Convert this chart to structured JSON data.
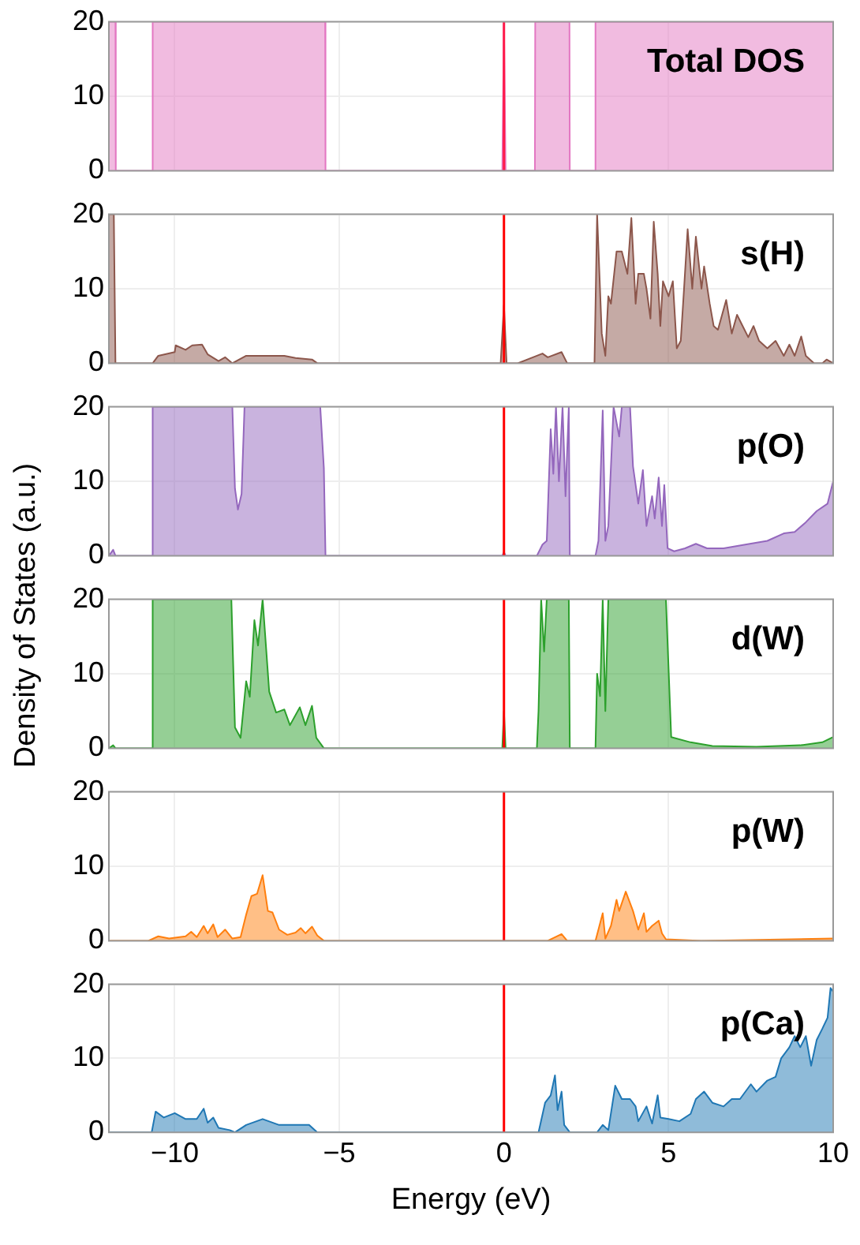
{
  "chart_data": [
    {
      "type": "area",
      "title": "Total DOS",
      "color": "#e377c2",
      "x": [
        -12,
        -11.8,
        -11.79,
        -10.68,
        -10.67,
        -5.43,
        -5.42,
        -0.05,
        0,
        0.05,
        0.94,
        0.95,
        1.99,
        2.0,
        2.77,
        2.78,
        10
      ],
      "values": [
        20,
        20,
        0,
        0,
        20,
        20,
        0,
        0,
        20,
        0,
        0,
        20,
        20,
        0,
        0,
        20,
        20
      ],
      "xlim": [
        -12,
        10
      ],
      "xticks": [
        -10,
        -5,
        0,
        5,
        10
      ],
      "ylim": [
        0,
        20
      ],
      "yticks": [
        0,
        10,
        20
      ],
      "grid": true,
      "tick_labels": "y",
      "ref_lines": [
        {
          "axis": "x",
          "value": 0,
          "color": "#ff1a4a"
        }
      ]
    },
    {
      "type": "area",
      "title": "s(H)",
      "color": "#8c564b",
      "x": [
        -12,
        -11.85,
        -11.8,
        -10.67,
        -10.5,
        -10,
        -9.97,
        -9.67,
        -9.47,
        -9.17,
        -9,
        -8.67,
        -8.47,
        -8.25,
        -7.83,
        -7.33,
        -6.67,
        -6.33,
        -5.83,
        -5.67,
        -0.1,
        0,
        0.08,
        0.42,
        1.17,
        1.33,
        1.75,
        1.92,
        2.75,
        2.83,
        2.97,
        3.08,
        3.17,
        3.25,
        3.42,
        3.58,
        3.75,
        3.87,
        4,
        4.08,
        4.25,
        4.33,
        4.45,
        4.55,
        4.67,
        4.75,
        4.83,
        5,
        5.13,
        5.25,
        5.37,
        5.47,
        5.58,
        5.72,
        5.83,
        6,
        6.08,
        6.25,
        6.37,
        6.5,
        6.75,
        6.92,
        7.08,
        7.25,
        7.42,
        7.58,
        7.75,
        8,
        8.25,
        8.5,
        8.67,
        8.83,
        9.03,
        9.17,
        9.42,
        9.67,
        9.8,
        10
      ],
      "values": [
        20,
        20,
        0,
        0,
        1,
        1.5,
        2.4,
        1.8,
        2.4,
        2.5,
        1.2,
        0.3,
        0.8,
        0,
        1,
        1,
        1,
        0.7,
        0.5,
        0,
        0,
        7.8,
        0,
        0,
        1.3,
        0.8,
        1.5,
        0,
        0,
        20,
        4,
        1,
        9,
        8,
        15,
        15,
        12,
        19.5,
        8,
        12,
        12,
        10,
        6,
        19,
        12,
        5,
        11,
        9,
        11,
        2,
        3,
        10,
        18,
        10,
        17,
        10,
        13,
        8,
        5,
        4.5,
        8.5,
        4,
        6.5,
        5,
        3.5,
        5,
        3,
        2,
        3,
        1,
        2.5,
        1,
        3.6,
        1,
        0,
        0,
        0.5,
        0
      ],
      "xlim": [
        -12,
        10
      ],
      "xticks": [
        -10,
        -5,
        0,
        5,
        10
      ],
      "ylim": [
        0,
        20
      ],
      "yticks": [
        0,
        10,
        20
      ],
      "grid": true,
      "tick_labels": "y",
      "ref_lines": [
        {
          "axis": "x",
          "value": 0,
          "color": "#ff0000"
        }
      ]
    },
    {
      "type": "area",
      "title": "p(O)",
      "color": "#9467bd",
      "x": [
        -12,
        -11.87,
        -11.8,
        -10.7,
        -10.67,
        -8.25,
        -8.17,
        -8.08,
        -7.97,
        -7.88,
        -5.58,
        -5.47,
        -5.42,
        -0.05,
        0,
        0.05,
        1,
        1.17,
        1.3,
        1.42,
        1.5,
        1.58,
        1.67,
        1.78,
        1.87,
        1.97,
        2.0,
        2.78,
        2.87,
        3.0,
        3.08,
        3.17,
        3.33,
        3.5,
        3.58,
        3.83,
        3.92,
        4.08,
        4.22,
        4.33,
        4.5,
        4.58,
        4.7,
        4.8,
        4.87,
        4.97,
        5.17,
        5.5,
        5.83,
        6.17,
        6.67,
        7.33,
        8,
        8.5,
        8.83,
        9.17,
        9.5,
        9.83,
        10
      ],
      "values": [
        0,
        0.8,
        0,
        0,
        20,
        20,
        9,
        6.2,
        8.3,
        20,
        20,
        11.8,
        0,
        0,
        0.5,
        0,
        0,
        1.5,
        2,
        17,
        11,
        20,
        10,
        20,
        8,
        20,
        0,
        0,
        2,
        19.5,
        2,
        4,
        20,
        16,
        20,
        20,
        12,
        7,
        11.5,
        4,
        8,
        5,
        10.5,
        4,
        9.5,
        1,
        0.6,
        1,
        1.6,
        1,
        1,
        1.5,
        2,
        3,
        3.2,
        4.5,
        6,
        7,
        10
      ],
      "xlim": [
        -12,
        10
      ],
      "xticks": [
        -10,
        -5,
        0,
        5,
        10
      ],
      "ylim": [
        0,
        20
      ],
      "yticks": [
        0,
        10,
        20
      ],
      "grid": true,
      "tick_labels": "y",
      "ref_lines": [
        {
          "axis": "x",
          "value": 0,
          "color": "#ff0000"
        }
      ]
    },
    {
      "type": "area",
      "title": "d(W)",
      "ylabel": "Density of States (a.u.)",
      "color": "#2ca02c",
      "x": [
        -12,
        -11.87,
        -11.8,
        -10.7,
        -10.67,
        -8.28,
        -8.17,
        -8,
        -7.83,
        -7.72,
        -7.58,
        -7.47,
        -7.33,
        -7.13,
        -6.92,
        -6.67,
        -6.5,
        -6.2,
        -6.03,
        -5.83,
        -5.7,
        -5.47,
        -0.05,
        0,
        0.05,
        1,
        1.05,
        1.13,
        1.22,
        1.3,
        1.97,
        2.0,
        2.78,
        2.83,
        2.92,
        3.0,
        3.08,
        3.17,
        4.92,
        5.08,
        5.67,
        6.33,
        7.67,
        9,
        9.67,
        10
      ],
      "values": [
        0,
        0.4,
        0,
        0,
        20,
        20,
        2.8,
        1.4,
        9,
        6.9,
        17.2,
        13.8,
        20,
        7.6,
        4.8,
        5.2,
        3.1,
        5.5,
        3.1,
        5.7,
        1.4,
        0,
        0,
        5,
        0,
        0,
        5,
        20,
        13,
        20,
        20,
        0,
        0,
        10,
        7,
        20,
        5,
        20,
        20,
        1.5,
        0.8,
        0.3,
        0.2,
        0.4,
        0.8,
        1.5
      ],
      "xlim": [
        -12,
        10
      ],
      "xticks": [
        -10,
        -5,
        0,
        5,
        10
      ],
      "ylim": [
        0,
        20
      ],
      "yticks": [
        0,
        10,
        20
      ],
      "grid": true,
      "tick_labels": "y",
      "ref_lines": [
        {
          "axis": "x",
          "value": 0,
          "color": "#ff0000"
        }
      ]
    },
    {
      "type": "area",
      "title": "p(W)",
      "color": "#ff7f0e",
      "x": [
        -12,
        -10.8,
        -10.5,
        -10.17,
        -9.67,
        -9.5,
        -9.33,
        -9.12,
        -9,
        -8.83,
        -8.7,
        -8.47,
        -8.25,
        -8,
        -7.83,
        -7.67,
        -7.5,
        -7.33,
        -7.17,
        -7.03,
        -6.83,
        -6.58,
        -6.33,
        -6.17,
        -6.03,
        -5.83,
        -5.67,
        -5.47,
        1.33,
        1.75,
        1.92,
        2.78,
        3.0,
        3.08,
        3.25,
        3.42,
        3.5,
        3.7,
        3.92,
        4.08,
        4.25,
        4.33,
        4.5,
        4.7,
        4.8,
        4.92,
        6,
        10
      ],
      "values": [
        0,
        0,
        0.6,
        0.3,
        0.6,
        1.2,
        0.5,
        2,
        1,
        2.2,
        0.5,
        1.5,
        0.3,
        0.5,
        3.5,
        6,
        6.3,
        8.8,
        4,
        3.8,
        1.5,
        0.8,
        1.1,
        1.7,
        1,
        1.9,
        0.7,
        0,
        0,
        0.9,
        0,
        0,
        3.7,
        0.3,
        2,
        5.5,
        4,
        6.6,
        4,
        1.5,
        3.7,
        1.2,
        2,
        2.7,
        1,
        0.2,
        0,
        0.3
      ],
      "xlim": [
        -12,
        10
      ],
      "xticks": [
        -10,
        -5,
        0,
        5,
        10
      ],
      "ylim": [
        0,
        20
      ],
      "yticks": [
        0,
        10,
        20
      ],
      "grid": true,
      "tick_labels": "y",
      "ref_lines": [
        {
          "axis": "x",
          "value": 0,
          "color": "#ff0000"
        }
      ]
    },
    {
      "type": "area",
      "title": "p(Ca)",
      "xlabel": "Energy (eV)",
      "color": "#1f77b4",
      "x": [
        -12,
        -10.7,
        -10.58,
        -10.33,
        -10,
        -9.67,
        -9.33,
        -9.12,
        -9,
        -8.83,
        -8.67,
        -8.33,
        -8.17,
        -7.83,
        -7.33,
        -6.83,
        -6.33,
        -5.92,
        -5.67,
        0,
        1.05,
        1.25,
        1.42,
        1.55,
        1.63,
        1.75,
        1.83,
        2.0,
        2.83,
        3.0,
        3.17,
        3.38,
        3.58,
        3.83,
        4.0,
        4.08,
        4.33,
        4.5,
        4.67,
        4.75,
        5,
        5.33,
        5.67,
        5.83,
        6.08,
        6.33,
        6.67,
        6.92,
        7.17,
        7.5,
        7.67,
        8,
        8.25,
        8.42,
        8.67,
        8.83,
        9,
        9.17,
        9.33,
        9.5,
        9.67,
        9.83,
        9.92,
        10
      ],
      "values": [
        0,
        0,
        2.8,
        2,
        2.6,
        1.8,
        1.8,
        3.2,
        1.3,
        2,
        0.6,
        0.3,
        0,
        1,
        1.8,
        1,
        1,
        1,
        0,
        0,
        0,
        4,
        5,
        7.7,
        3,
        5.5,
        1,
        0,
        0,
        1,
        0.3,
        6.3,
        4.5,
        4.5,
        3.5,
        1.5,
        3.5,
        1.2,
        5,
        2,
        1.8,
        1.5,
        2.5,
        4.5,
        5.5,
        4,
        3.5,
        4.5,
        4.5,
        6.5,
        5.5,
        7,
        7.5,
        10,
        11.5,
        13,
        11.5,
        13,
        9,
        12.5,
        14,
        15.5,
        19.5,
        19
      ],
      "xlim": [
        -12,
        10
      ],
      "xticks": [
        -10,
        -5,
        0,
        5,
        10
      ],
      "ylim": [
        0,
        20
      ],
      "yticks": [
        0,
        10,
        20
      ],
      "grid": true,
      "ref_lines": [
        {
          "axis": "x",
          "value": 0,
          "color": "#ff0000"
        }
      ]
    }
  ]
}
